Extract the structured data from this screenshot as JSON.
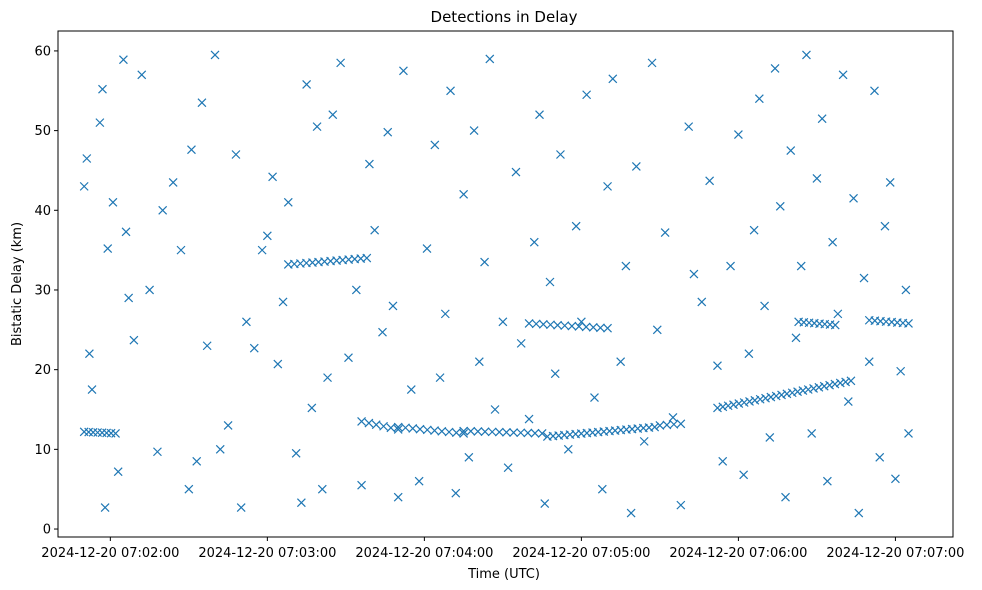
{
  "chart_data": {
    "type": "scatter",
    "title": "Detections in Delay",
    "xlabel": "Time (UTC)",
    "ylabel": "Bistatic Delay (km)",
    "marker": "x",
    "color": "#1f77b4",
    "x_unit": "seconds since 2024-12-20 07:02:00",
    "xlim": [
      -20,
      322
    ],
    "ylim": [
      -1,
      62.5
    ],
    "x_ticks": [
      0,
      60,
      120,
      180,
      240,
      300
    ],
    "x_tick_labels": [
      "2024-12-20 07:02:00",
      "2024-12-20 07:03:00",
      "2024-12-20 07:04:00",
      "2024-12-20 07:05:00",
      "2024-12-20 07:06:00",
      "2024-12-20 07:07:00"
    ],
    "y_ticks": [
      0,
      10,
      20,
      30,
      40,
      50,
      60
    ],
    "y_tick_labels": [
      "0",
      "10",
      "20",
      "30",
      "40",
      "50",
      "60"
    ],
    "tracks": [
      {
        "x_start": -10,
        "x_end": 2,
        "y_start": 12.2,
        "y_end": 12.0,
        "count": 8
      },
      {
        "x_start": 68,
        "x_end": 98,
        "y_start": 33.2,
        "y_end": 34.0,
        "count": 14
      },
      {
        "x_start": 96,
        "x_end": 110,
        "y_start": 13.5,
        "y_end": 12.5,
        "count": 6
      },
      {
        "x_start": 110,
        "x_end": 135,
        "y_start": 12.8,
        "y_end": 12.0,
        "count": 10
      },
      {
        "x_start": 135,
        "x_end": 165,
        "y_start": 12.3,
        "y_end": 12.0,
        "count": 12
      },
      {
        "x_start": 160,
        "x_end": 190,
        "y_start": 25.8,
        "y_end": 25.2,
        "count": 12
      },
      {
        "x_start": 167,
        "x_end": 208,
        "y_start": 11.6,
        "y_end": 12.8,
        "count": 20
      },
      {
        "x_start": 210,
        "x_end": 218,
        "y_start": 13.0,
        "y_end": 13.2,
        "count": 4
      },
      {
        "x_start": 232,
        "x_end": 283,
        "y_start": 15.2,
        "y_end": 18.6,
        "count": 26
      },
      {
        "x_start": 263,
        "x_end": 277,
        "y_start": 26.0,
        "y_end": 25.6,
        "count": 8
      },
      {
        "x_start": 290,
        "x_end": 305,
        "y_start": 26.2,
        "y_end": 25.8,
        "count": 8
      }
    ],
    "points": [
      [
        -10,
        43.0
      ],
      [
        -9,
        46.5
      ],
      [
        -8,
        22.0
      ],
      [
        -7,
        17.5
      ],
      [
        -4,
        51.0
      ],
      [
        -3,
        55.2
      ],
      [
        -2,
        2.7
      ],
      [
        -1,
        35.2
      ],
      [
        1,
        41.0
      ],
      [
        3,
        7.2
      ],
      [
        5,
        58.9
      ],
      [
        6,
        37.3
      ],
      [
        7,
        29.0
      ],
      [
        9,
        23.7
      ],
      [
        12,
        57.0
      ],
      [
        15,
        30.0
      ],
      [
        18,
        9.7
      ],
      [
        20,
        40.0
      ],
      [
        24,
        43.5
      ],
      [
        27,
        35.0
      ],
      [
        30,
        5.0
      ],
      [
        31,
        47.6
      ],
      [
        33,
        8.5
      ],
      [
        35,
        53.5
      ],
      [
        37,
        23.0
      ],
      [
        40,
        59.5
      ],
      [
        42,
        10.0
      ],
      [
        45,
        13.0
      ],
      [
        48,
        47.0
      ],
      [
        50,
        2.7
      ],
      [
        52,
        26.0
      ],
      [
        55,
        22.7
      ],
      [
        58,
        35.0
      ],
      [
        60,
        36.8
      ],
      [
        62,
        44.2
      ],
      [
        64,
        20.7
      ],
      [
        66,
        28.5
      ],
      [
        68,
        41.0
      ],
      [
        71,
        9.5
      ],
      [
        73,
        3.3
      ],
      [
        75,
        55.8
      ],
      [
        77,
        15.2
      ],
      [
        79,
        50.5
      ],
      [
        81,
        5.0
      ],
      [
        83,
        19.0
      ],
      [
        85,
        52.0
      ],
      [
        88,
        58.5
      ],
      [
        91,
        21.5
      ],
      [
        94,
        30.0
      ],
      [
        96,
        5.5
      ],
      [
        99,
        45.8
      ],
      [
        101,
        37.5
      ],
      [
        104,
        24.7
      ],
      [
        106,
        49.8
      ],
      [
        108,
        28.0
      ],
      [
        110,
        4.0
      ],
      [
        112,
        57.5
      ],
      [
        115,
        17.5
      ],
      [
        118,
        6.0
      ],
      [
        121,
        35.2
      ],
      [
        124,
        48.2
      ],
      [
        126,
        19.0
      ],
      [
        128,
        27.0
      ],
      [
        130,
        55.0
      ],
      [
        132,
        4.5
      ],
      [
        135,
        42.0
      ],
      [
        137,
        9.0
      ],
      [
        139,
        50.0
      ],
      [
        141,
        21.0
      ],
      [
        143,
        33.5
      ],
      [
        145,
        59.0
      ],
      [
        147,
        15.0
      ],
      [
        150,
        26.0
      ],
      [
        152,
        7.7
      ],
      [
        155,
        44.8
      ],
      [
        157,
        23.3
      ],
      [
        160,
        13.8
      ],
      [
        162,
        36.0
      ],
      [
        164,
        52.0
      ],
      [
        166,
        3.2
      ],
      [
        168,
        31.0
      ],
      [
        170,
        19.5
      ],
      [
        172,
        47.0
      ],
      [
        175,
        10.0
      ],
      [
        178,
        38.0
      ],
      [
        180,
        26.0
      ],
      [
        182,
        54.5
      ],
      [
        185,
        16.5
      ],
      [
        188,
        5.0
      ],
      [
        190,
        43.0
      ],
      [
        192,
        56.5
      ],
      [
        195,
        21.0
      ],
      [
        197,
        33.0
      ],
      [
        199,
        2.0
      ],
      [
        201,
        45.5
      ],
      [
        204,
        11.0
      ],
      [
        207,
        58.5
      ],
      [
        209,
        25.0
      ],
      [
        212,
        37.2
      ],
      [
        215,
        14.0
      ],
      [
        218,
        3.0
      ],
      [
        221,
        50.5
      ],
      [
        223,
        32.0
      ],
      [
        226,
        28.5
      ],
      [
        229,
        43.7
      ],
      [
        232,
        20.5
      ],
      [
        234,
        8.5
      ],
      [
        237,
        33.0
      ],
      [
        240,
        49.5
      ],
      [
        242,
        6.8
      ],
      [
        244,
        22.0
      ],
      [
        246,
        37.5
      ],
      [
        248,
        54.0
      ],
      [
        250,
        28.0
      ],
      [
        252,
        11.5
      ],
      [
        254,
        57.8
      ],
      [
        256,
        40.5
      ],
      [
        258,
        4.0
      ],
      [
        260,
        47.5
      ],
      [
        262,
        24.0
      ],
      [
        264,
        33.0
      ],
      [
        266,
        59.5
      ],
      [
        268,
        12.0
      ],
      [
        270,
        44.0
      ],
      [
        272,
        51.5
      ],
      [
        274,
        6.0
      ],
      [
        276,
        36.0
      ],
      [
        278,
        27.0
      ],
      [
        280,
        57.0
      ],
      [
        282,
        16.0
      ],
      [
        284,
        41.5
      ],
      [
        286,
        2.0
      ],
      [
        288,
        31.5
      ],
      [
        290,
        21.0
      ],
      [
        292,
        55.0
      ],
      [
        294,
        9.0
      ],
      [
        296,
        38.0
      ],
      [
        298,
        43.5
      ],
      [
        300,
        6.3
      ],
      [
        302,
        19.8
      ],
      [
        304,
        30.0
      ],
      [
        305,
        12.0
      ]
    ]
  }
}
